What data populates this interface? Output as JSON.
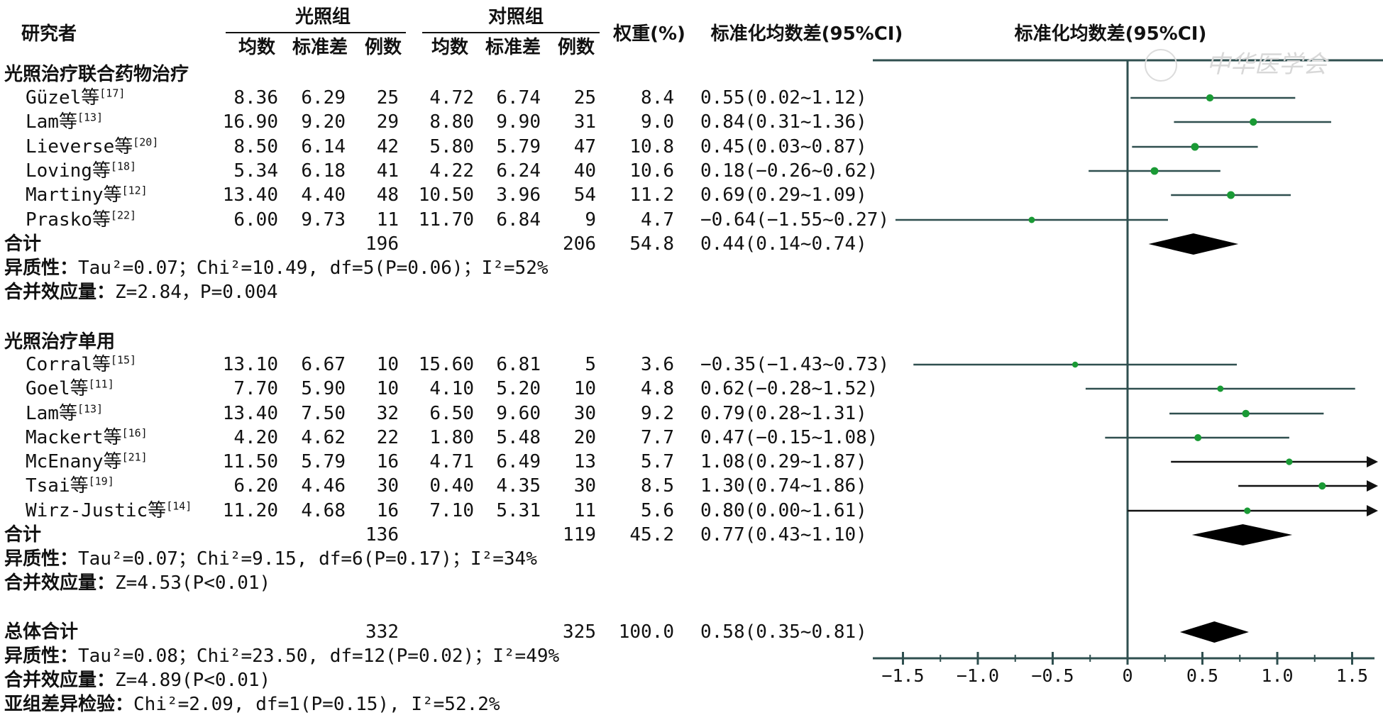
{
  "headers": {
    "study": "研究者",
    "light_group": "光照组",
    "control_group": "对照组",
    "mean": "均数",
    "sd": "标准差",
    "n": "例数",
    "weight": "权重(%)",
    "smd_col": "标准化均数差(95%CI)",
    "plot_title": "标准化均数差(95%CI)"
  },
  "subgroups": [
    {
      "title": "光照治疗联合药物治疗",
      "studies": [
        {
          "name": "Güzel等",
          "ref": "[17]",
          "m1": "8.36",
          "sd1": "6.29",
          "n1": "25",
          "m2": "4.72",
          "sd2": "6.74",
          "n2": "25",
          "w": "8.4",
          "ci": "0.55(0.02~1.12)",
          "smd": 0.55,
          "lo": 0.02,
          "hi": 1.12
        },
        {
          "name": "Lam等",
          "ref": "[13]",
          "m1": "16.90",
          "sd1": "9.20",
          "n1": "29",
          "m2": "8.80",
          "sd2": "9.90",
          "n2": "31",
          "w": "9.0",
          "ci": "0.84(0.31~1.36)",
          "smd": 0.84,
          "lo": 0.31,
          "hi": 1.36
        },
        {
          "name": "Lieverse等",
          "ref": "[20]",
          "m1": "8.50",
          "sd1": "6.14",
          "n1": "42",
          "m2": "5.80",
          "sd2": "5.79",
          "n2": "47",
          "w": "10.8",
          "ci": "0.45(0.03~0.87)",
          "smd": 0.45,
          "lo": 0.03,
          "hi": 0.87
        },
        {
          "name": "Loving等",
          "ref": "[18]",
          "m1": "5.34",
          "sd1": "6.18",
          "n1": "41",
          "m2": "4.22",
          "sd2": "6.24",
          "n2": "40",
          "w": "10.6",
          "ci": "0.18(−0.26~0.62)",
          "smd": 0.18,
          "lo": -0.26,
          "hi": 0.62
        },
        {
          "name": "Martiny等",
          "ref": "[12]",
          "m1": "13.40",
          "sd1": "4.40",
          "n1": "48",
          "m2": "10.50",
          "sd2": "3.96",
          "n2": "54",
          "w": "11.2",
          "ci": "0.69(0.29~1.09)",
          "smd": 0.69,
          "lo": 0.29,
          "hi": 1.09
        },
        {
          "name": "Prasko等",
          "ref": "[22]",
          "m1": "6.00",
          "sd1": "9.73",
          "n1": "11",
          "m2": "11.70",
          "sd2": "6.84",
          "n2": "9",
          "w": "4.7",
          "ci": "−0.64(−1.55~0.27)",
          "smd": -0.64,
          "lo": -1.55,
          "hi": 0.27
        }
      ],
      "total": {
        "label": "合计",
        "n1": "196",
        "n2": "206",
        "w": "54.8",
        "ci": "0.44(0.14~0.74)",
        "smd": 0.44,
        "lo": 0.14,
        "hi": 0.74
      },
      "heterogeneity": "异质性：Tau²=0.07；Chi²=10.49, df=5(P=0.06)；I²=52%",
      "effect": "合并效应量：Z=2.84，P=0.004"
    },
    {
      "title": "光照治疗单用",
      "studies": [
        {
          "name": "Corral等",
          "ref": "[15]",
          "m1": "13.10",
          "sd1": "6.67",
          "n1": "10",
          "m2": "15.60",
          "sd2": "6.81",
          "n2": "5",
          "w": "3.6",
          "ci": "−0.35(−1.43~0.73)",
          "smd": -0.35,
          "lo": -1.43,
          "hi": 0.73
        },
        {
          "name": "Goel等",
          "ref": "[11]",
          "m1": "7.70",
          "sd1": "5.90",
          "n1": "10",
          "m2": "4.10",
          "sd2": "5.20",
          "n2": "10",
          "w": "4.8",
          "ci": "0.62(−0.28~1.52)",
          "smd": 0.62,
          "lo": -0.28,
          "hi": 1.52
        },
        {
          "name": "Lam等",
          "ref": "[13]",
          "m1": "13.40",
          "sd1": "7.50",
          "n1": "32",
          "m2": "6.50",
          "sd2": "9.60",
          "n2": "30",
          "w": "9.2",
          "ci": "0.79(0.28~1.31)",
          "smd": 0.79,
          "lo": 0.28,
          "hi": 1.31
        },
        {
          "name": "Mackert等",
          "ref": "[16]",
          "m1": "4.20",
          "sd1": "4.62",
          "n1": "22",
          "m2": "1.80",
          "sd2": "5.48",
          "n2": "20",
          "w": "7.7",
          "ci": "0.47(−0.15~1.08)",
          "smd": 0.47,
          "lo": -0.15,
          "hi": 1.08
        },
        {
          "name": "McEnany等",
          "ref": "[21]",
          "m1": "11.50",
          "sd1": "5.79",
          "n1": "16",
          "m2": "4.71",
          "sd2": "6.49",
          "n2": "13",
          "w": "5.7",
          "ci": "1.08(0.29~1.87)",
          "smd": 1.08,
          "lo": 0.29,
          "hi": 1.87
        },
        {
          "name": "Tsai等",
          "ref": "[19]",
          "m1": "6.20",
          "sd1": "4.46",
          "n1": "30",
          "m2": "0.40",
          "sd2": "4.35",
          "n2": "30",
          "w": "8.5",
          "ci": "1.30(0.74~1.86)",
          "smd": 1.3,
          "lo": 0.74,
          "hi": 1.86
        },
        {
          "name": "Wirz-Justic等",
          "ref": "[14]",
          "m1": "11.20",
          "sd1": "4.68",
          "n1": "16",
          "m2": "7.10",
          "sd2": "5.31",
          "n2": "11",
          "w": "5.6",
          "ci": "0.80(0.00~1.61)",
          "smd": 0.8,
          "lo": 0.0,
          "hi": 1.61
        }
      ],
      "total": {
        "label": "合计",
        "n1": "136",
        "n2": "119",
        "w": "45.2",
        "ci": "0.77(0.43~1.10)",
        "smd": 0.77,
        "lo": 0.43,
        "hi": 1.1
      },
      "heterogeneity": "异质性：Tau²=0.07；Chi²=9.15, df=6(P=0.17)；I²=34%",
      "effect": "合并效应量：Z=4.53(P<0.01)"
    }
  ],
  "overall": {
    "label": "总体合计",
    "n1": "332",
    "n2": "325",
    "w": "100.0",
    "ci": "0.58(0.35~0.81)",
    "smd": 0.58,
    "lo": 0.35,
    "hi": 0.81,
    "heterogeneity": "异质性：Tau²=0.08；Chi²=23.50, df=12(P=0.02)；I²=49%",
    "effect": "合并效应量：Z=4.89(P<0.01)",
    "subgroup_test": "亚组差异检验：Chi²=2.09, df=1(P=0.15), I²=52.2%"
  },
  "colors": {
    "marker": "#1a9a35",
    "ci_line": "#2f4f4f",
    "arrow_line": "#111111",
    "diamond": "#000000",
    "axis": "#2f4f4f"
  },
  "chart_data": {
    "type": "forest",
    "title": "标准化均数差(95%CI)",
    "xlim": [
      -1.6,
      1.6
    ],
    "xticks": [
      -1.5,
      -1.0,
      -0.5,
      0,
      0.5,
      1.0,
      1.5
    ],
    "xtick_labels": [
      "−1.5",
      "−1.0",
      "−0.5",
      "0",
      "0.5",
      "1.0",
      "1.5"
    ],
    "reference_line": 0,
    "arrows_on": [
      "McEnany等",
      "Tsai等",
      "Wirz-Justic等"
    ],
    "arrow_on_total": [],
    "watermark": "中华医学会"
  }
}
